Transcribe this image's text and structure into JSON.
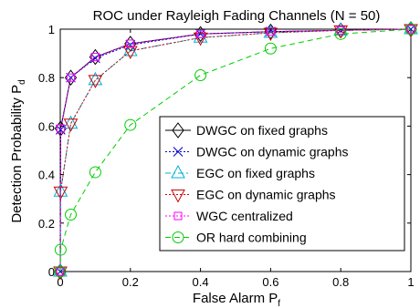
{
  "chart_data": {
    "type": "line",
    "title": "ROC under Rayleigh Fading Channels (N = 50)",
    "xlabel": "False Alarm P",
    "xlabel_sub": "f",
    "ylabel": "Detection Probability P",
    "ylabel_sub": "d",
    "xlim": [
      0,
      1
    ],
    "ylim": [
      0,
      1
    ],
    "xticks": [
      "0",
      "0.2",
      "0.4",
      "0.6",
      "0.8",
      "1"
    ],
    "yticks": [
      "0",
      "0.2",
      "0.4",
      "0.6",
      "0.8",
      "1"
    ],
    "grid": false,
    "legend_position": "lower-right",
    "series": [
      {
        "name": "DWGC on fixed graphs",
        "color": "#000000",
        "line": "solid",
        "marker": "diamond",
        "x": [
          0,
          0.001,
          0.03,
          0.1,
          0.2,
          0.4,
          0.6,
          0.8,
          1.0
        ],
        "y": [
          0,
          0.59,
          0.8,
          0.885,
          0.94,
          0.98,
          0.99,
          0.995,
          1.0
        ]
      },
      {
        "name": "DWGC on dynamic graphs",
        "color": "#0000cc",
        "line": "dotted",
        "marker": "x",
        "x": [
          0,
          0.001,
          0.03,
          0.1,
          0.2,
          0.4,
          0.6,
          0.8,
          1.0
        ],
        "y": [
          0,
          0.585,
          0.8,
          0.88,
          0.935,
          0.98,
          0.99,
          0.995,
          1.0
        ]
      },
      {
        "name": "EGC on fixed graphs",
        "color": "#00b0d8",
        "line": "dash-dot",
        "marker": "triangle-up",
        "x": [
          0,
          0.001,
          0.03,
          0.1,
          0.2,
          0.4,
          0.6,
          0.8,
          1.0
        ],
        "y": [
          0,
          0.33,
          0.61,
          0.79,
          0.91,
          0.965,
          0.985,
          0.995,
          1.0
        ]
      },
      {
        "name": "EGC on dynamic graphs",
        "color": "#cc0000",
        "line": "dotted",
        "marker": "triangle-down",
        "x": [
          0,
          0.001,
          0.03,
          0.1,
          0.2,
          0.4,
          0.6,
          0.8,
          1.0
        ],
        "y": [
          0,
          0.33,
          0.61,
          0.79,
          0.91,
          0.965,
          0.985,
          0.995,
          1.0
        ]
      },
      {
        "name": "WGC centralized",
        "color": "#ff00ff",
        "line": "dotted",
        "marker": "square",
        "x": [
          0,
          0.001,
          0.03,
          0.1,
          0.2,
          0.4,
          0.6,
          0.8,
          1.0
        ],
        "y": [
          0,
          0.59,
          0.8,
          0.885,
          0.94,
          0.98,
          0.99,
          0.995,
          1.0
        ]
      },
      {
        "name": "OR hard combining",
        "color": "#00cc00",
        "line": "dashed",
        "marker": "circle",
        "x": [
          0,
          0.001,
          0.03,
          0.1,
          0.2,
          0.4,
          0.6,
          0.8,
          1.0
        ],
        "y": [
          0,
          0.09,
          0.235,
          0.41,
          0.605,
          0.81,
          0.92,
          0.98,
          1.0
        ]
      }
    ]
  }
}
